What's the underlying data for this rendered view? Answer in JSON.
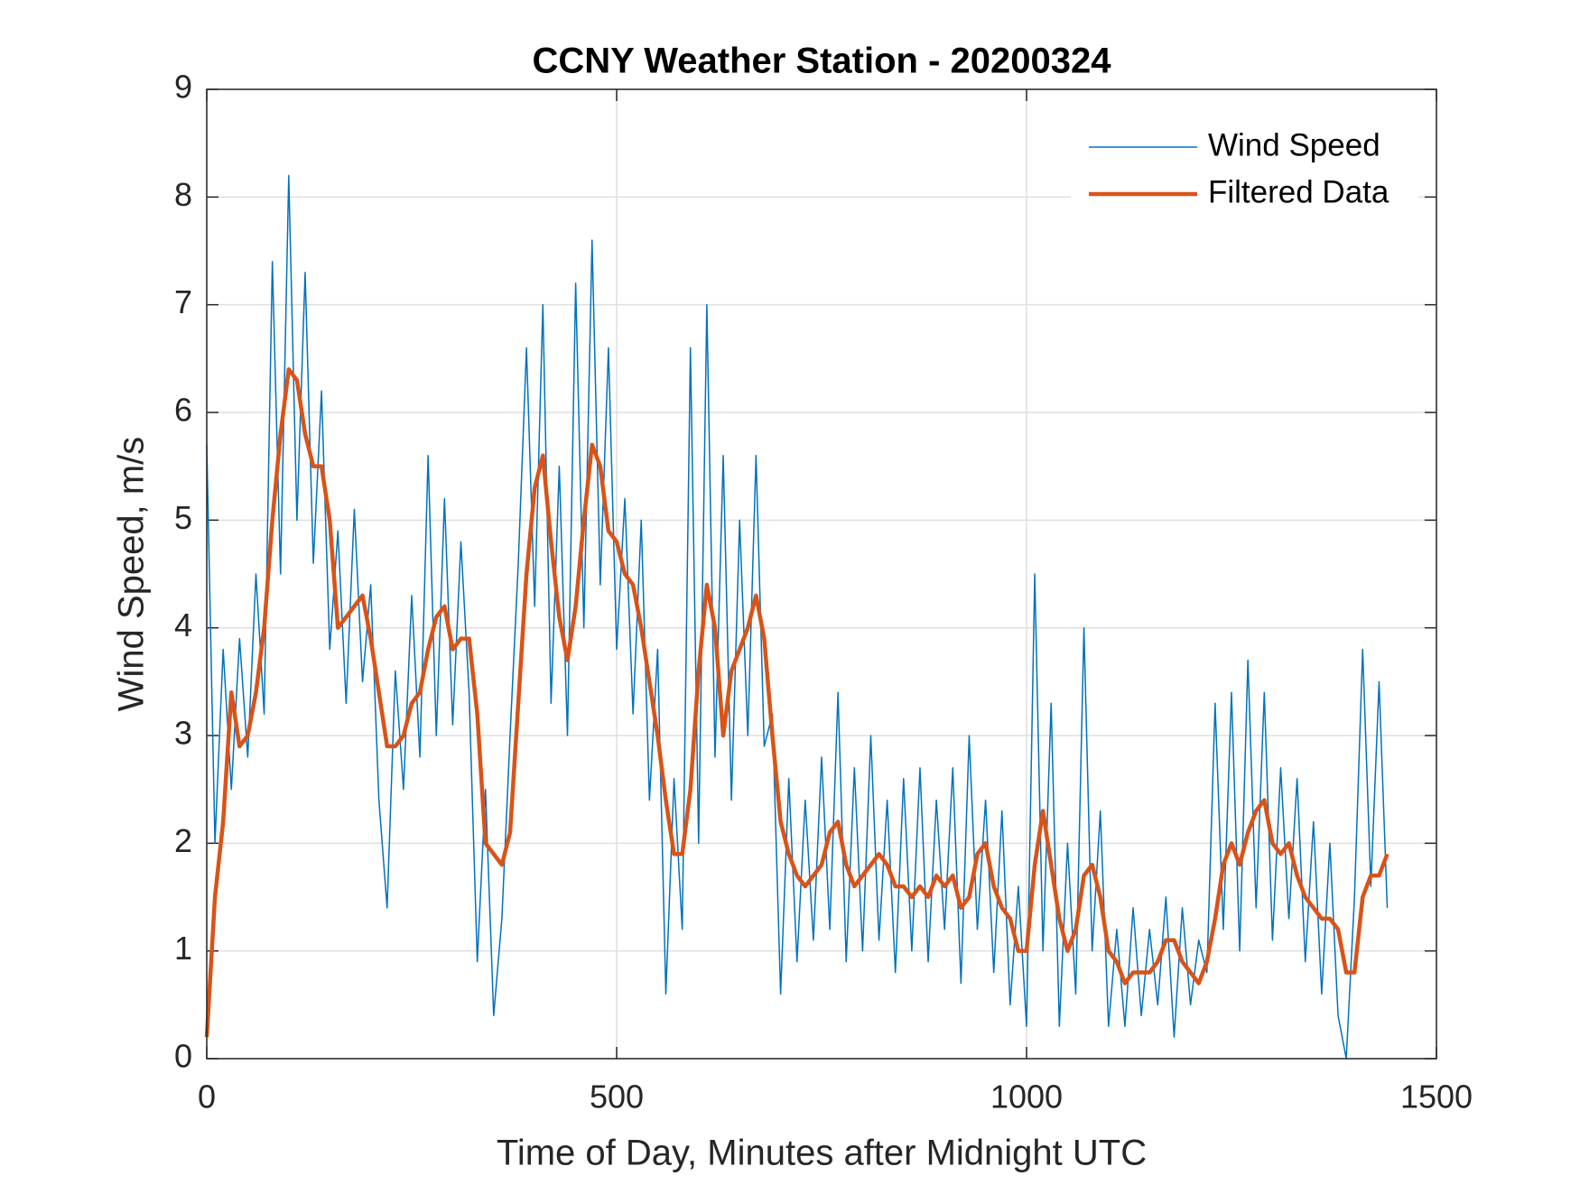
{
  "chart_data": {
    "type": "line",
    "title": "CCNY Weather Station - 20200324",
    "xlabel": "Time of Day, Minutes after Midnight UTC",
    "ylabel": "Wind Speed, m/s",
    "xlim": [
      0,
      1500
    ],
    "xticks": [
      0,
      500,
      1000,
      1500
    ],
    "ylim": [
      0,
      9
    ],
    "yticks": [
      0,
      1,
      2,
      3,
      4,
      5,
      6,
      7,
      8,
      9
    ],
    "grid": true,
    "legend": "upper-right",
    "x": [
      0,
      10,
      20,
      30,
      40,
      50,
      60,
      70,
      80,
      90,
      100,
      110,
      120,
      130,
      140,
      150,
      160,
      170,
      180,
      190,
      200,
      210,
      220,
      230,
      240,
      250,
      260,
      270,
      280,
      290,
      300,
      310,
      320,
      330,
      340,
      350,
      360,
      370,
      380,
      390,
      400,
      410,
      420,
      430,
      440,
      450,
      460,
      470,
      480,
      490,
      500,
      510,
      520,
      530,
      540,
      550,
      560,
      570,
      580,
      590,
      600,
      610,
      620,
      630,
      640,
      650,
      660,
      670,
      680,
      690,
      700,
      710,
      720,
      730,
      740,
      750,
      760,
      770,
      780,
      790,
      800,
      810,
      820,
      830,
      840,
      850,
      860,
      870,
      880,
      890,
      900,
      910,
      920,
      930,
      940,
      950,
      960,
      970,
      980,
      990,
      1000,
      1010,
      1020,
      1030,
      1040,
      1050,
      1060,
      1070,
      1080,
      1090,
      1100,
      1110,
      1120,
      1130,
      1140,
      1150,
      1160,
      1170,
      1180,
      1190,
      1200,
      1210,
      1220,
      1230,
      1240,
      1250,
      1260,
      1270,
      1280,
      1290,
      1300,
      1310,
      1320,
      1330,
      1340,
      1350,
      1360,
      1370,
      1380,
      1390,
      1400,
      1410,
      1420,
      1430,
      1440
    ],
    "series": [
      {
        "name": "Wind Speed",
        "color": "#0072bd",
        "width": 1.5,
        "values": [
          5.7,
          2.0,
          3.8,
          2.5,
          3.9,
          2.8,
          4.5,
          3.2,
          7.4,
          4.5,
          8.2,
          5.0,
          7.3,
          4.6,
          6.2,
          3.8,
          4.9,
          3.3,
          5.1,
          3.5,
          4.4,
          2.4,
          1.4,
          3.6,
          2.5,
          4.3,
          2.8,
          5.6,
          3.0,
          5.2,
          3.1,
          4.8,
          3.4,
          0.9,
          2.5,
          0.4,
          1.3,
          3.0,
          4.6,
          6.6,
          4.2,
          7.0,
          3.3,
          5.5,
          3.0,
          7.2,
          4.0,
          7.6,
          4.4,
          6.6,
          3.8,
          5.2,
          3.2,
          5.0,
          2.4,
          3.8,
          0.6,
          2.6,
          1.2,
          6.6,
          2.0,
          7.0,
          2.8,
          5.6,
          2.4,
          5.0,
          3.0,
          5.6,
          2.9,
          3.2,
          0.6,
          2.6,
          0.9,
          2.4,
          1.1,
          2.8,
          1.2,
          3.4,
          0.9,
          2.7,
          1.0,
          3.0,
          1.1,
          2.4,
          0.8,
          2.6,
          1.0,
          2.7,
          0.9,
          2.4,
          1.2,
          2.7,
          0.7,
          3.0,
          1.2,
          2.4,
          0.8,
          2.3,
          0.5,
          1.6,
          0.3,
          4.5,
          1.0,
          3.3,
          0.3,
          2.0,
          0.6,
          4.0,
          1.0,
          2.3,
          0.3,
          1.2,
          0.3,
          1.4,
          0.4,
          1.2,
          0.5,
          1.5,
          0.2,
          1.4,
          0.5,
          1.1,
          0.8,
          3.3,
          1.2,
          3.4,
          1.0,
          3.7,
          1.4,
          3.4,
          1.1,
          2.7,
          1.3,
          2.6,
          0.9,
          2.2,
          0.6,
          2.0,
          0.4,
          0.0,
          1.5,
          3.8,
          1.6,
          3.5,
          1.4
        ]
      },
      {
        "name": "Filtered Data",
        "color": "#d95319",
        "width": 4.5,
        "values": [
          0.2,
          1.5,
          2.2,
          3.4,
          2.9,
          3.0,
          3.4,
          4.0,
          5.0,
          5.8,
          6.4,
          6.3,
          5.8,
          5.5,
          5.5,
          5.0,
          4.0,
          4.1,
          4.2,
          4.3,
          3.9,
          3.4,
          2.9,
          2.9,
          3.0,
          3.3,
          3.4,
          3.8,
          4.1,
          4.2,
          3.8,
          3.9,
          3.9,
          3.2,
          2.0,
          1.9,
          1.8,
          2.1,
          3.3,
          4.5,
          5.3,
          5.6,
          4.8,
          4.1,
          3.7,
          4.2,
          5.0,
          5.7,
          5.5,
          4.9,
          4.8,
          4.5,
          4.4,
          4.0,
          3.5,
          3.0,
          2.4,
          1.9,
          1.9,
          2.5,
          3.6,
          4.4,
          4.0,
          3.0,
          3.6,
          3.8,
          4.0,
          4.3,
          3.9,
          3.0,
          2.2,
          1.9,
          1.7,
          1.6,
          1.7,
          1.8,
          2.1,
          2.2,
          1.8,
          1.6,
          1.7,
          1.8,
          1.9,
          1.8,
          1.6,
          1.6,
          1.5,
          1.6,
          1.5,
          1.7,
          1.6,
          1.7,
          1.4,
          1.5,
          1.9,
          2.0,
          1.6,
          1.4,
          1.3,
          1.0,
          1.0,
          1.8,
          2.3,
          1.8,
          1.3,
          1.0,
          1.2,
          1.7,
          1.8,
          1.5,
          1.0,
          0.9,
          0.7,
          0.8,
          0.8,
          0.8,
          0.9,
          1.1,
          1.1,
          0.9,
          0.8,
          0.7,
          0.9,
          1.3,
          1.8,
          2.0,
          1.8,
          2.1,
          2.3,
          2.4,
          2.0,
          1.9,
          2.0,
          1.7,
          1.5,
          1.4,
          1.3,
          1.3,
          1.2,
          0.8,
          0.8,
          1.5,
          1.7,
          1.7,
          1.9
        ]
      }
    ]
  }
}
